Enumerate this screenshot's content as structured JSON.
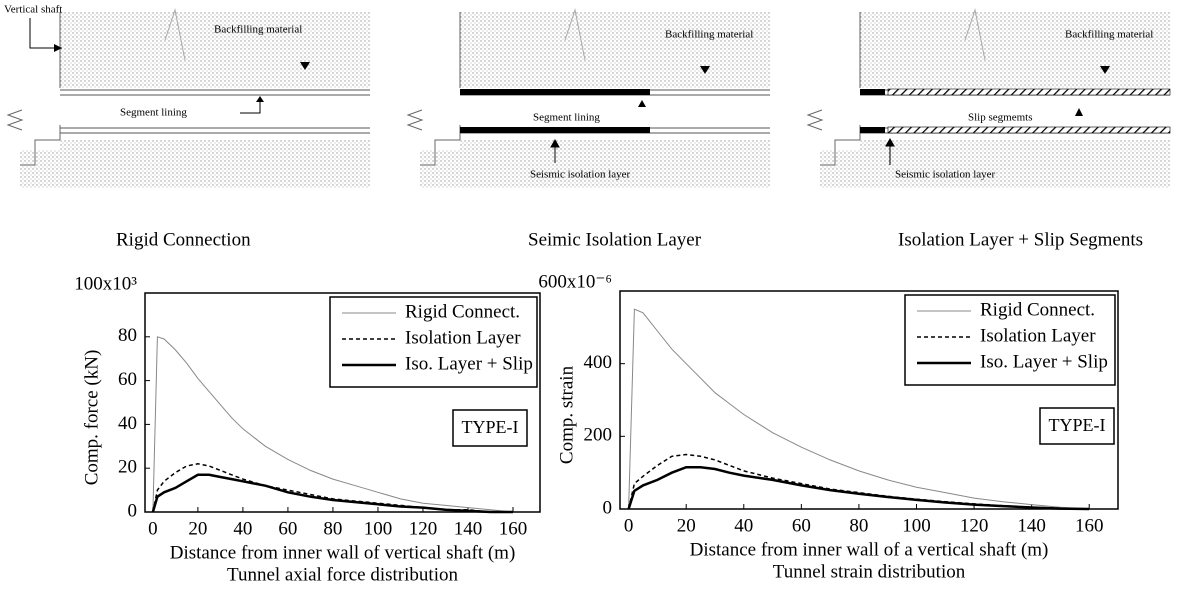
{
  "diagrams": [
    {
      "labels": [
        "Vertical shaft",
        "Backfilling material",
        "Segment lining"
      ],
      "caption": "Rigid Connection"
    },
    {
      "labels": [
        "Backfilling material",
        "Segment lining",
        "Seismic isolation layer"
      ],
      "caption": "Seimic Isolation Layer"
    },
    {
      "labels": [
        "Backfilling material",
        "Slip segmemts",
        "Seismic isolation layer"
      ],
      "caption": "Isolation Layer + Slip Segments"
    }
  ],
  "chart_data": [
    {
      "type": "line",
      "caption": "Tunnel axial force distribution",
      "xlabel": "Distance from inner wall of vertical shaft (m)",
      "ylabel": "Comp. force (kN)",
      "annotation": "TYPE-I",
      "legend": "upper right",
      "x": [
        0,
        2,
        5,
        10,
        15,
        20,
        25,
        30,
        35,
        40,
        50,
        60,
        70,
        80,
        90,
        100,
        110,
        120,
        130,
        140,
        150,
        160
      ],
      "series": [
        {
          "name": "Rigid Connect.",
          "color": "#888888",
          "linestyle": "solid",
          "linewidth": 1,
          "values": [
            0,
            80,
            79,
            74,
            68,
            61,
            55,
            49,
            43,
            38,
            30,
            24,
            19,
            15,
            12,
            9,
            6,
            4,
            3,
            2,
            1,
            0
          ]
        },
        {
          "name": "Isolation Layer",
          "color": "#000000",
          "linestyle": "dashed",
          "linewidth": 1.5,
          "values": [
            0,
            10,
            14,
            18,
            21,
            22,
            21,
            19,
            17,
            15,
            12,
            10,
            8,
            6,
            5,
            4,
            3,
            2,
            1,
            1,
            0,
            0
          ]
        },
        {
          "name": "Iso. Layer + Slip",
          "color": "#000000",
          "linestyle": "solid",
          "linewidth": 2.5,
          "values": [
            0,
            7,
            9,
            11,
            14,
            17,
            17,
            16,
            15,
            14,
            12,
            9,
            7,
            5.5,
            4.5,
            3.5,
            2.5,
            2,
            1,
            0.5,
            0,
            0
          ]
        }
      ],
      "xlim": [
        -3.5,
        172
      ],
      "xticks": [
        0,
        20,
        40,
        60,
        80,
        100,
        120,
        140,
        160
      ],
      "ylim": [
        0,
        100
      ],
      "yticks": [
        0,
        20,
        40,
        60,
        80,
        {
          "value": 100,
          "label": "100x10³"
        }
      ]
    },
    {
      "type": "line",
      "caption": "Tunnel strain distribution",
      "xlabel": "Distance from inner wall of a vertical shaft (m)",
      "ylabel": "Comp. strain",
      "annotation": "TYPE-I",
      "legend": "upper right",
      "x": [
        0,
        2,
        5,
        10,
        15,
        20,
        25,
        30,
        35,
        40,
        50,
        60,
        70,
        80,
        90,
        100,
        110,
        120,
        130,
        140,
        150,
        160
      ],
      "series": [
        {
          "name": "Rigid Connect.",
          "color": "#888888",
          "linestyle": "solid",
          "linewidth": 1,
          "values": [
            0,
            550,
            540,
            490,
            440,
            400,
            360,
            320,
            290,
            260,
            210,
            170,
            135,
            105,
            80,
            60,
            45,
            30,
            20,
            12,
            5,
            0
          ]
        },
        {
          "name": "Isolation Layer",
          "color": "#000000",
          "linestyle": "dashed",
          "linewidth": 1.5,
          "values": [
            0,
            70,
            90,
            120,
            145,
            150,
            145,
            135,
            120,
            105,
            85,
            70,
            55,
            45,
            35,
            27,
            20,
            14,
            9,
            5,
            2,
            0
          ]
        },
        {
          "name": "Iso. Layer + Slip",
          "color": "#000000",
          "linestyle": "solid",
          "linewidth": 2.5,
          "values": [
            0,
            50,
            65,
            80,
            100,
            115,
            115,
            110,
            100,
            92,
            80,
            65,
            52,
            42,
            33,
            25,
            18,
            12,
            8,
            4,
            1,
            0
          ]
        }
      ],
      "xlim": [
        -3,
        170
      ],
      "xticks": [
        0,
        20,
        40,
        60,
        80,
        100,
        120,
        140,
        160
      ],
      "ylim": [
        0,
        600
      ],
      "yticks": [
        0,
        200,
        400,
        {
          "value": 600,
          "label": "600x10⁻⁶"
        }
      ]
    }
  ]
}
